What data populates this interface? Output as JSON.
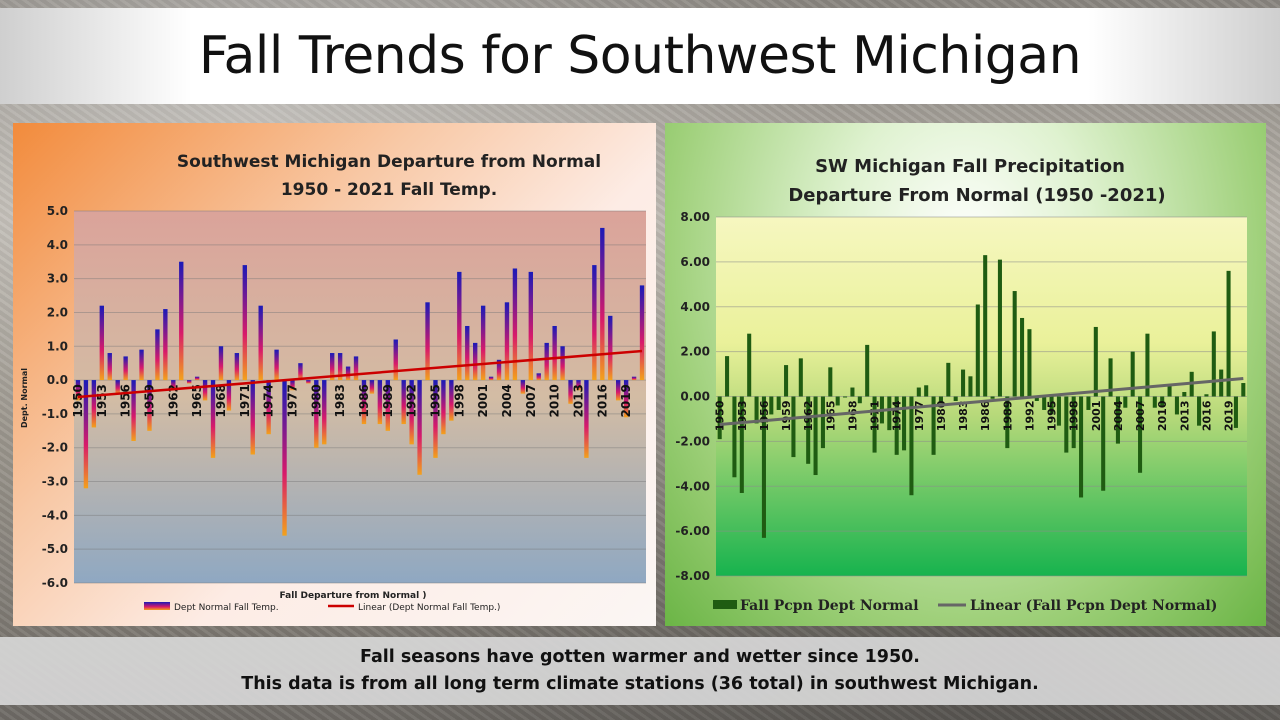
{
  "page": {
    "title": "Fall Trends for Southwest Michigan",
    "caption_line1": "Fall seasons have gotten warmer and wetter since 1950.",
    "caption_line2": "This data is from all long term climate stations (36 total) in southwest Michigan."
  },
  "chart_data": [
    {
      "type": "bar",
      "title": "Southwest Michigan Departure from Normal",
      "subtitle": "1950 - 2021 Fall Temp.",
      "xlabel": "Fall Departure from Normal )",
      "ylabel": "Dept. Normal",
      "ylim": [
        -6,
        5
      ],
      "yticks": [
        "-6.0",
        "-5.0",
        "-4.0",
        "-3.0",
        "-2.0",
        "-1.0",
        "0.0",
        "1.0",
        "2.0",
        "3.0",
        "4.0",
        "5.0"
      ],
      "x_start": 1950,
      "x_tick_labels": [
        "1950",
        "1953",
        "1956",
        "1959",
        "1962",
        "1965",
        "1968",
        "1971",
        "1974",
        "1977",
        "1980",
        "1983",
        "1986",
        "1989",
        "1992",
        "1995",
        "1998",
        "2001",
        "2004",
        "2007",
        "2010",
        "2013",
        "2016",
        "2019"
      ],
      "series": [
        {
          "name": "Dept Normal Fall Temp.",
          "values": [
            -0.6,
            -3.2,
            -1.4,
            2.2,
            0.8,
            -0.4,
            0.7,
            -1.8,
            0.9,
            -1.5,
            1.5,
            2.1,
            -0.3,
            3.5,
            -0.1,
            0.1,
            -0.6,
            -2.3,
            1.0,
            -0.9,
            0.8,
            3.4,
            -2.2,
            2.2,
            -1.6,
            0.9,
            -4.6,
            -0.3,
            0.5,
            -0.1,
            -2.0,
            -1.9,
            0.8,
            0.8,
            0.4,
            0.7,
            -1.3,
            -0.4,
            -1.3,
            -1.5,
            1.2,
            -1.3,
            -1.9,
            -2.8,
            2.3,
            -2.3,
            -1.6,
            -1.2,
            3.2,
            1.6,
            1.1,
            2.2,
            0.1,
            0.6,
            2.3,
            3.3,
            -0.4,
            3.2,
            0.2,
            1.1,
            1.6,
            1.0,
            -0.7,
            -0.3,
            -2.3,
            3.4,
            4.5,
            1.9,
            -0.6,
            -1.1,
            0.1,
            2.8
          ]
        },
        {
          "name": "Linear (Dept Normal Fall Temp.)",
          "trend": [
            -0.5,
            0.86
          ]
        }
      ],
      "colors": {
        "bar_top": "#1a1ab8",
        "bar_mid": "#d81a6a",
        "bar_end": "#f3a21b",
        "trend": "#cc0000"
      },
      "grid": true,
      "legend": "bottom"
    },
    {
      "type": "bar",
      "title": "SW Michigan Fall Precipitation",
      "subtitle": "Departure From Normal (1950 -2021)",
      "ylim": [
        -8,
        8
      ],
      "yticks": [
        "-8.00",
        "-6.00",
        "-4.00",
        "-2.00",
        "0.00",
        "2.00",
        "4.00",
        "6.00",
        "8.00"
      ],
      "x_start": 1950,
      "x_tick_labels": [
        "1950",
        "1953",
        "1956",
        "1959",
        "1962",
        "1965",
        "1968",
        "1971",
        "1974",
        "1977",
        "1980",
        "1983",
        "1986",
        "1989",
        "1992",
        "1995",
        "1998",
        "2001",
        "2004",
        "2007",
        "2010",
        "2013",
        "2016",
        "2019"
      ],
      "series": [
        {
          "name": "Fall Pcpn Dept Normal",
          "values": [
            -1.9,
            1.8,
            -3.6,
            -4.3,
            2.8,
            -1.2,
            -6.3,
            -0.8,
            -0.6,
            1.4,
            -2.7,
            1.7,
            -3.0,
            -3.5,
            -2.3,
            1.3,
            -0.4,
            0.0,
            0.4,
            -0.3,
            2.3,
            -2.5,
            -1.2,
            -1.5,
            -2.6,
            -2.4,
            -4.4,
            0.4,
            0.5,
            -2.6,
            -0.3,
            1.5,
            -0.2,
            1.2,
            0.9,
            4.1,
            6.3,
            -0.1,
            6.1,
            -2.3,
            4.7,
            3.5,
            3.0,
            -0.2,
            -0.6,
            -0.8,
            -1.3,
            -2.5,
            -2.3,
            -4.5,
            -0.6,
            3.1,
            -4.2,
            1.7,
            -2.1,
            -0.5,
            2.0,
            -3.4,
            2.8,
            -0.5,
            -0.4,
            0.5,
            -0.8,
            0.2,
            1.1,
            -1.3,
            0.1,
            2.9,
            1.2,
            5.6,
            -1.4,
            0.6
          ]
        },
        {
          "name": "Linear (Fall Pcpn Dept Normal)",
          "trend": [
            -1.25,
            0.8
          ]
        }
      ],
      "colors": {
        "bar": "#1f5c12",
        "trend": "#666666"
      },
      "grid": true,
      "legend": "bottom"
    }
  ]
}
